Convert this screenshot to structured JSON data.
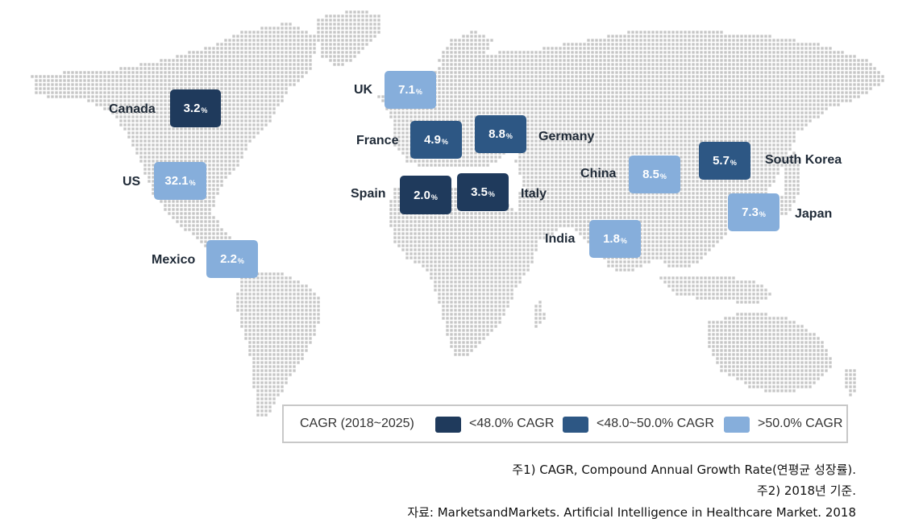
{
  "colors": {
    "dot": "#c6c6c6",
    "tier_low": "#1f3a5c",
    "tier_mid": "#2d5784",
    "tier_high": "#86aedb",
    "label": "#1f2a37"
  },
  "countries": [
    {
      "name": "Canada",
      "value": "3.2",
      "unit": "%",
      "tier": "low"
    },
    {
      "name": "US",
      "value": "32.1",
      "unit": "%",
      "tier": "high"
    },
    {
      "name": "Mexico",
      "value": "2.2",
      "unit": "%",
      "tier": "high"
    },
    {
      "name": "UK",
      "value": "7.1",
      "unit": "%",
      "tier": "high"
    },
    {
      "name": "France",
      "value": "4.9",
      "unit": "%",
      "tier": "mid"
    },
    {
      "name": "Germany",
      "value": "8.8",
      "unit": "%",
      "tier": "mid"
    },
    {
      "name": "Spain",
      "value": "2.0",
      "unit": "%",
      "tier": "low"
    },
    {
      "name": "Italy",
      "value": "3.5",
      "unit": "%",
      "tier": "low"
    },
    {
      "name": "China",
      "value": "8.5",
      "unit": "%",
      "tier": "high"
    },
    {
      "name": "South Korea",
      "value": "5.7",
      "unit": "%",
      "tier": "mid"
    },
    {
      "name": "Japan",
      "value": "7.3",
      "unit": "%",
      "tier": "high"
    },
    {
      "name": "India",
      "value": "1.8",
      "unit": "%",
      "tier": "high"
    }
  ],
  "legend": {
    "title": "CAGR (2018~2025)",
    "items": [
      {
        "label": "<48.0% CAGR",
        "tier": "low"
      },
      {
        "label": "<48.0~50.0% CAGR",
        "tier": "mid"
      },
      {
        "label": ">50.0% CAGR",
        "tier": "high"
      }
    ]
  },
  "notes": {
    "note1": "주1) CAGR, Compound Annual Growth Rate(연평균 성장률).",
    "note2": "주2) 2018년 기준.",
    "source": "자료: MarketsandMarkets. Artificial Intelligence in Healthcare Market. 2018"
  }
}
